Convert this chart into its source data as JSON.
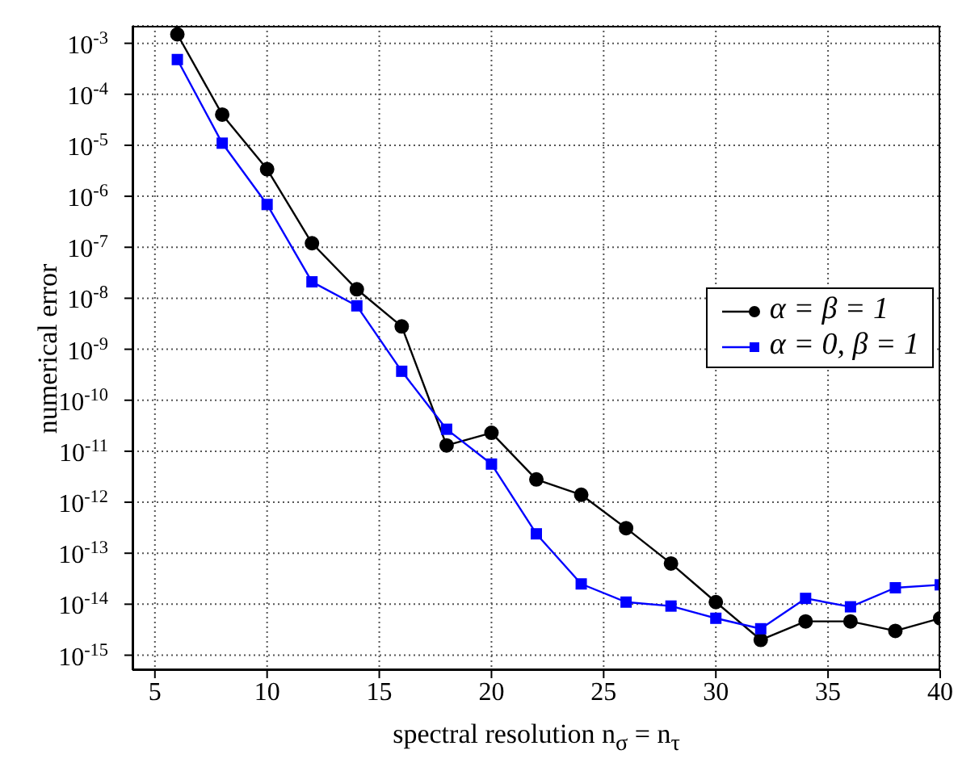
{
  "chart_data": {
    "type": "line",
    "xlabel": "spectral resolution n$_{σ}$ = n$_{τ}$",
    "ylabel": "numerical error",
    "log": "y",
    "grid": true,
    "legend": "right",
    "line_style": "solid",
    "xlim": [
      4,
      40
    ],
    "xticks": [
      5,
      10,
      15,
      20,
      25,
      30,
      35,
      40
    ],
    "ylim": [
      5.1e-16,
      0.0022
    ],
    "yticks": [
      {
        "value": 0.001,
        "label": "10$^{-3}$"
      },
      {
        "value": 0.0001,
        "label": "10$^{-4}$"
      },
      {
        "value": 1e-05,
        "label": "10$^{-5}$"
      },
      {
        "value": 1e-06,
        "label": "10$^{-6}$"
      },
      {
        "value": 1e-07,
        "label": "10$^{-7}$"
      },
      {
        "value": 1e-08,
        "label": "10$^{-8}$"
      },
      {
        "value": 1e-09,
        "label": "10$^{-9}$"
      },
      {
        "value": 1e-10,
        "label": "10$^{-10}$"
      },
      {
        "value": 1e-11,
        "label": "10$^{-11}$"
      },
      {
        "value": 1e-12,
        "label": "10$^{-12}$"
      },
      {
        "value": 1e-13,
        "label": "10$^{-13}$"
      },
      {
        "value": 1e-14,
        "label": "10$^{-14}$"
      },
      {
        "value": 1e-15,
        "label": "10$^{-15}$"
      }
    ],
    "x": [
      6,
      8,
      10,
      12,
      14,
      16,
      18,
      20,
      22,
      24,
      26,
      28,
      30,
      32,
      34,
      36,
      38,
      40
    ],
    "series": [
      {
        "name": "α = β = 1",
        "color": "#000000",
        "marker": "circle",
        "values": [
          0.0015,
          4e-05,
          3.4e-06,
          1.2e-07,
          1.5e-08,
          2.8e-09,
          1.3e-11,
          2.3e-11,
          2.8e-12,
          1.4e-12,
          3.1e-13,
          6.3e-14,
          1.1e-14,
          2e-15,
          4.6e-15,
          4.6e-15,
          3e-15,
          5.3e-15
        ]
      },
      {
        "name": "α = 0, β = 1",
        "color": "#0000ff",
        "marker": "square",
        "values": [
          0.00048,
          1.1e-05,
          6.9e-07,
          2.1e-08,
          7.1e-09,
          3.7e-10,
          2.7e-11,
          5.6e-12,
          2.4e-13,
          2.5e-14,
          1.1e-14,
          9.2e-15,
          5.3e-15,
          3.3e-15,
          1.3e-14,
          8.9e-15,
          2.1e-14,
          2.4e-14
        ]
      }
    ]
  }
}
